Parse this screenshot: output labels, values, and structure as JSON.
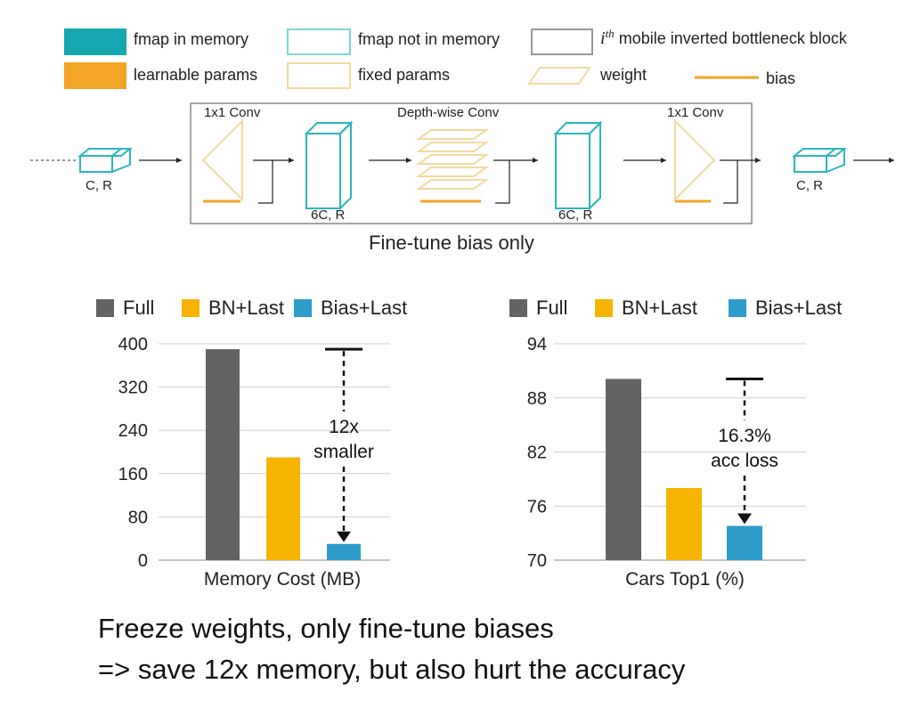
{
  "legend_top": {
    "fmap_in_memory": "fmap in memory",
    "fmap_not_in_memory": "fmap not in memory",
    "ith_sup": "th",
    "ith_label": "mobile inverted bottleneck block",
    "learnable_params": "learnable params",
    "fixed_params": "fixed params",
    "weight": "weight",
    "bias": "bias",
    "colors": {
      "teal": "#17a7b0",
      "orange": "#f3a526",
      "fixed_outline": "#f2d9a0",
      "fmap_outline": "#7fd4d8"
    }
  },
  "diagram": {
    "conv1_label": "1x1 Conv",
    "dw_label": "Depth-wise Conv",
    "conv2_label": "1x1 Conv",
    "input_dims": "C, R",
    "hidden1_dims": "6C, R",
    "hidden2_dims": "6C, R",
    "output_dims": "C, R",
    "caption": "Fine-tune bias only"
  },
  "chart_data": [
    {
      "type": "bar",
      "categories": [
        "Full",
        "BN+Last",
        "Bias+Last"
      ],
      "values": [
        390,
        190,
        30
      ],
      "colors": [
        "#636363",
        "#f6b400",
        "#2e9cc9"
      ],
      "xlabel": "Memory Cost (MB)",
      "ylabel": "",
      "ylim": [
        0,
        400
      ],
      "yticks": [
        "0",
        "80",
        "160",
        "240",
        "320",
        "400"
      ],
      "grid": true,
      "legend": [
        "Full",
        "BN+Last",
        "Bias+Last"
      ],
      "legend_position": "top",
      "annotation": {
        "line1": "12x",
        "line2": "smaller",
        "from": 390,
        "to": 30
      }
    },
    {
      "type": "bar",
      "categories": [
        "Full",
        "BN+Last",
        "Bias+Last"
      ],
      "values": [
        90.1,
        78,
        73.8
      ],
      "colors": [
        "#636363",
        "#f6b400",
        "#2e9cc9"
      ],
      "xlabel": "Cars Top1 (%)",
      "ylabel": "",
      "ylim": [
        70,
        94
      ],
      "yticks": [
        "70",
        "76",
        "82",
        "88",
        "94"
      ],
      "grid": true,
      "legend": [
        "Full",
        "BN+Last",
        "Bias+Last"
      ],
      "legend_position": "top",
      "annotation": {
        "line1": "16.3%",
        "line2": "acc loss",
        "from": 90.1,
        "to": 73.8
      }
    }
  ],
  "footer": {
    "line1": "Freeze weights, only fine-tune biases",
    "line2": "=> save 12x memory, but also hurt the accuracy"
  }
}
